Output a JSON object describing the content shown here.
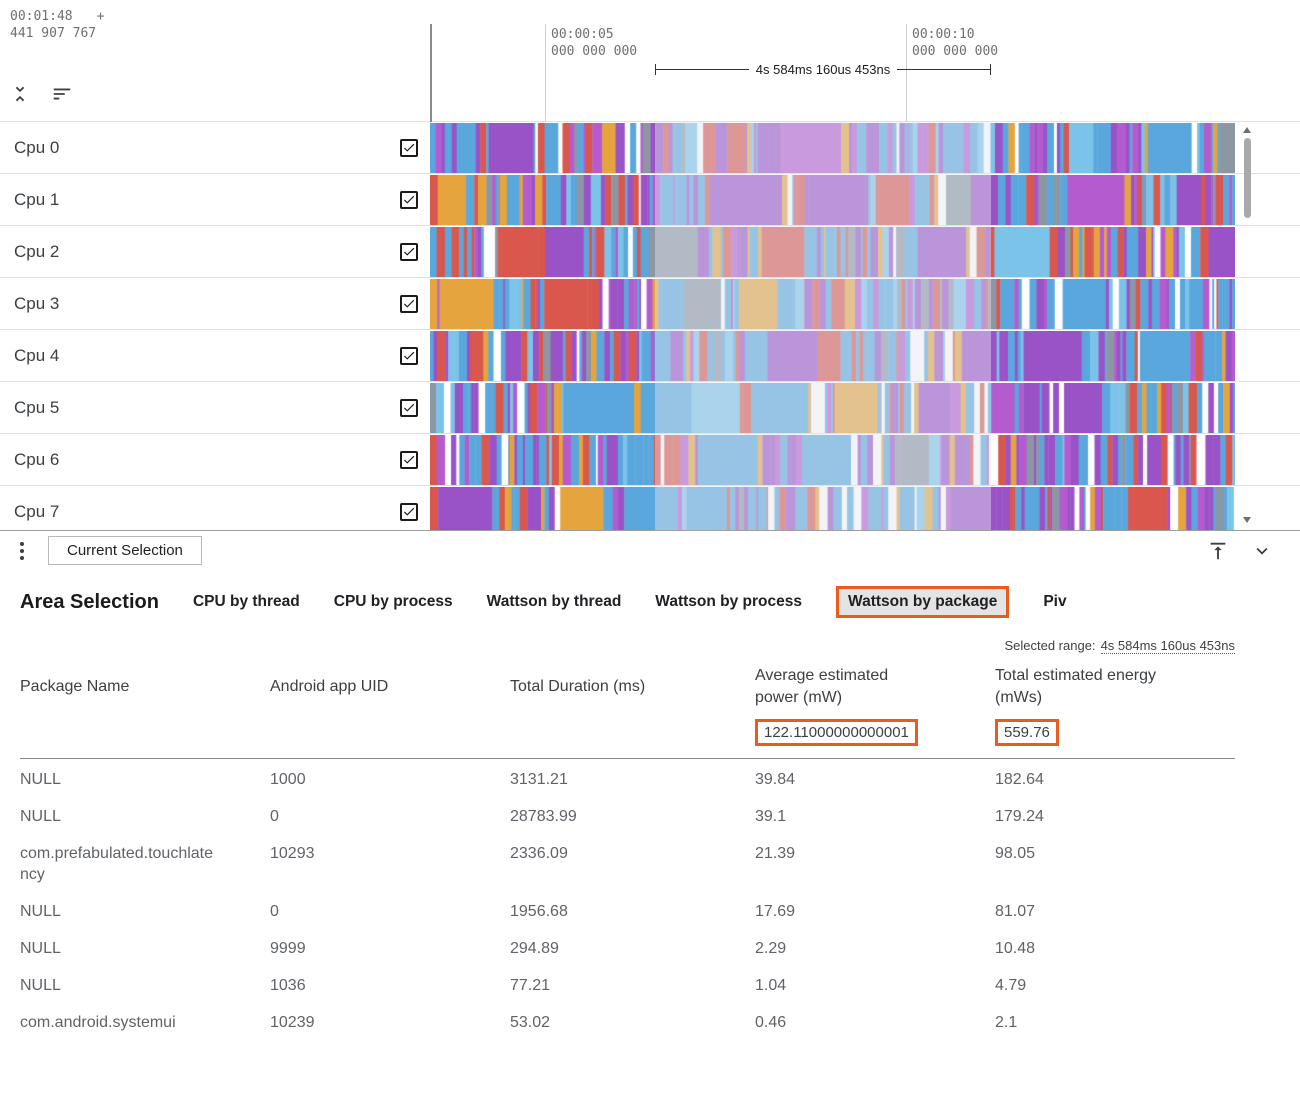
{
  "ruler": {
    "origin_time": "00:01:48",
    "origin_plus": "+",
    "origin_offset": "441 907 767",
    "ticks": [
      {
        "time": "00:00:05",
        "sub": "000 000 000"
      },
      {
        "time": "00:00:10",
        "sub": "000 000 000"
      }
    ],
    "range_label": "4s 584ms 160us 453ns"
  },
  "tracks": [
    {
      "name": "Cpu 0",
      "checked": true
    },
    {
      "name": "Cpu 1",
      "checked": true
    },
    {
      "name": "Cpu 2",
      "checked": true
    },
    {
      "name": "Cpu 3",
      "checked": true
    },
    {
      "name": "Cpu 4",
      "checked": true
    },
    {
      "name": "Cpu 5",
      "checked": true
    },
    {
      "name": "Cpu 6",
      "checked": true
    },
    {
      "name": "Cpu 7",
      "checked": true
    }
  ],
  "tab_bar": {
    "current_tab": "Current Selection"
  },
  "selection_panel": {
    "title": "Area Selection",
    "tabs": [
      {
        "label": "CPU by thread",
        "active": false
      },
      {
        "label": "CPU by process",
        "active": false
      },
      {
        "label": "Wattson by thread",
        "active": false
      },
      {
        "label": "Wattson by process",
        "active": false
      },
      {
        "label": "Wattson by package",
        "active": true
      },
      {
        "label": "Piv",
        "active": false
      }
    ],
    "selected_range_label": "Selected range:",
    "selected_range_value": "4s 584ms 160us 453ns",
    "table": {
      "columns": [
        "Package Name",
        "Android app UID",
        "Total Duration (ms)",
        "Average estimated power (mW)",
        "Total estimated energy (mWs)"
      ],
      "summary": {
        "avg_power": "122.11000000000001",
        "total_energy": "559.76"
      },
      "rows": [
        [
          "NULL",
          "1000",
          "3131.21",
          "39.84",
          "182.64"
        ],
        [
          "NULL",
          "0",
          "28783.99",
          "39.1",
          "179.24"
        ],
        [
          "com.prefabulated.touchlatency",
          "10293",
          "2336.09",
          "21.39",
          "98.05"
        ],
        [
          "NULL",
          "0",
          "1956.68",
          "17.69",
          "81.07"
        ],
        [
          "NULL",
          "9999",
          "294.89",
          "2.29",
          "10.48"
        ],
        [
          "NULL",
          "1036",
          "77.21",
          "1.04",
          "4.79"
        ],
        [
          "com.android.systemui",
          "10239",
          "53.02",
          "0.46",
          "2.1"
        ]
      ]
    }
  },
  "icons": {
    "collapse_tracks": "unfold-less",
    "track_sort": "sort-lines",
    "panel_menu": "kebab-vertical",
    "dock_to_top": "vertical-align-top",
    "collapse_panel": "chevron-down",
    "checkbox": "checked-box",
    "scroll_up": "triangle-up",
    "scroll_down": "triangle-down"
  },
  "colors": {
    "accent_orange": "#e85d1f",
    "selection_overlay": "rgba(226,230,240,0.45)",
    "track_palette": [
      {
        "name": "blue",
        "color": "#5aa7dd",
        "weight": 0.3
      },
      {
        "name": "lightblue",
        "color": "#7cc3ea",
        "weight": 0.08
      },
      {
        "name": "purple",
        "color": "#9a52c7",
        "weight": 0.22
      },
      {
        "name": "violet",
        "color": "#b45ccf",
        "weight": 0.1
      },
      {
        "name": "red",
        "color": "#d9574d",
        "weight": 0.1
      },
      {
        "name": "orange",
        "color": "#e5a43e",
        "weight": 0.05
      },
      {
        "name": "gray",
        "color": "#8b97a3",
        "weight": 0.06
      },
      {
        "name": "white",
        "color": "#ffffff",
        "weight": 0.09
      }
    ]
  }
}
